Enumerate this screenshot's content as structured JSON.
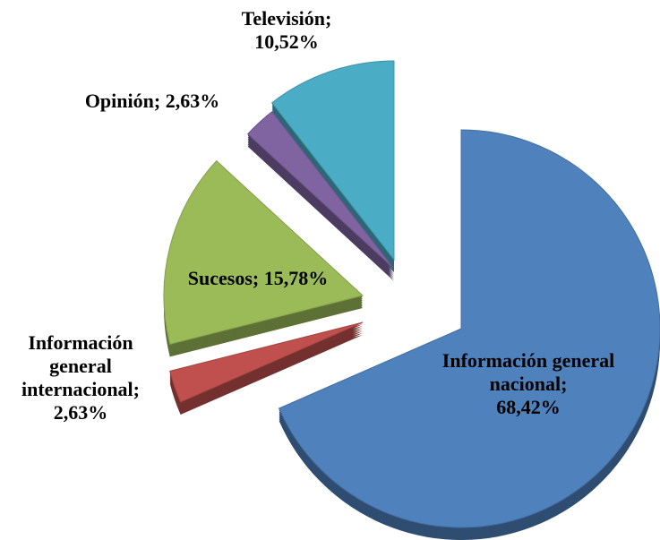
{
  "chart_data": {
    "type": "pie",
    "categories": [
      "Información general nacional",
      "Información general internacional",
      "Sucesos",
      "Opinión",
      "Televisión"
    ],
    "values": [
      68.42,
      2.63,
      15.78,
      2.63,
      10.52
    ],
    "value_labels": [
      "68,42%",
      "2,63%",
      "15,78%",
      "2,63%",
      "10,52%"
    ],
    "label_separator": ";",
    "colors": [
      "#4f81bd",
      "#c0504d",
      "#9bbb59",
      "#8064a2",
      "#4bacc6"
    ]
  }
}
